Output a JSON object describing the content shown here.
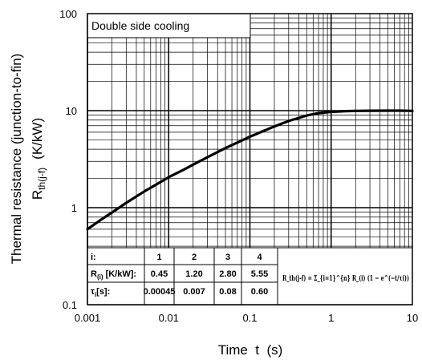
{
  "chart_data": {
    "type": "line",
    "title": "",
    "annotation": "Double side cooling",
    "xlabel": "Time  t  (s)",
    "ylabel_line1": "Thermal resistance (junction-to-fin)",
    "ylabel_line2_main": "R",
    "ylabel_line2_sub": "th(j-f)",
    "ylabel_line2_unit": "(K/kW)",
    "x_scale": "log",
    "y_scale": "log",
    "xlim": [
      0.001,
      10
    ],
    "ylim": [
      0.1,
      100
    ],
    "x_ticks": [
      "0.001",
      "0.01",
      "0.1",
      "1",
      "10"
    ],
    "y_ticks": [
      "0.1",
      "1",
      "10",
      "100"
    ],
    "grid": true,
    "series": [
      {
        "x": [
          0.001,
          0.0015,
          0.002,
          0.003,
          0.005,
          0.007,
          0.01,
          0.015,
          0.02,
          0.03,
          0.05,
          0.07,
          0.1,
          0.15,
          0.2,
          0.3,
          0.5,
          0.7,
          1,
          1.5,
          2,
          3,
          5,
          7,
          10
        ],
        "y": [
          0.6,
          0.76,
          0.89,
          1.12,
          1.47,
          1.73,
          2.06,
          2.44,
          2.78,
          3.31,
          4.11,
          4.69,
          5.39,
          6.21,
          6.88,
          7.83,
          8.91,
          9.42,
          9.72,
          9.89,
          9.95,
          9.98,
          10.0,
          10.0,
          9.95
        ]
      }
    ],
    "table": {
      "headers": [
        "i:",
        "1",
        "2",
        "3",
        "4"
      ],
      "rows": [
        {
          "label_main": "R",
          "label_sub": "(i)",
          "label_tail": " [K/kW]:",
          "values": [
            "0.45",
            "1.20",
            "2.80",
            "5.55"
          ]
        },
        {
          "label_main": "τ",
          "label_sub": "i",
          "label_tail": "[s]:",
          "values": [
            "0.00045",
            "0.007",
            "0.08",
            "0.60"
          ]
        }
      ],
      "formula": "R_th(j-f) = Σ_{i=1}^{n} R_(i) (1 − e^(−t/τi))"
    }
  }
}
